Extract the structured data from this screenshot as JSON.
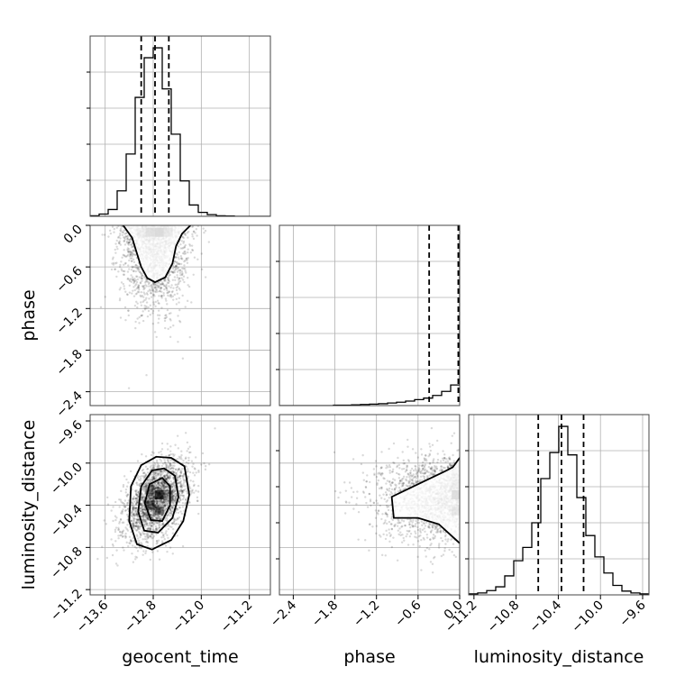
{
  "chart_data": {
    "type": "corner",
    "parameters": [
      "geocent_time",
      "phase",
      "luminosity_distance"
    ],
    "labels": {
      "geocent_time": "geocent_time",
      "phase": "phase",
      "luminosity_distance": "luminosity_distance"
    },
    "ranges": {
      "geocent_time": [
        -13.85,
        -10.85
      ],
      "phase": [
        -2.6,
        0.0
      ],
      "luminosity_distance": [
        -11.25,
        -9.54
      ]
    },
    "ticks": {
      "geocent_time": {
        "values": [
          -13.6,
          -12.8,
          -12.0,
          -11.2
        ],
        "labels": [
          "−13.6",
          "−12.8",
          "−12.0",
          "−11.2"
        ]
      },
      "phase": {
        "values": [
          -2.4,
          -1.8,
          -1.2,
          -0.6,
          0.0
        ],
        "labels": [
          "−2.4",
          "−1.8",
          "−1.2",
          "−0.6",
          "0.0"
        ]
      },
      "luminosity_distance": {
        "values": [
          -11.2,
          -10.8,
          -10.4,
          -10.0,
          -9.6
        ],
        "labels": [
          "−11.2",
          "−10.8",
          "−10.4",
          "−10.0",
          "−9.6"
        ]
      }
    },
    "grid": true,
    "marginals": {
      "geocent_time": {
        "bins": [
          -13.85,
          -13.7,
          -13.55,
          -13.4,
          -13.25,
          -13.1,
          -12.95,
          -12.8,
          -12.65,
          -12.5,
          -12.35,
          -12.2,
          -12.05,
          -11.9,
          -11.75,
          -11.6,
          -11.45,
          -11.3,
          -11.15,
          -11.0,
          -10.85
        ],
        "counts": [
          2,
          8,
          24,
          90,
          220,
          420,
          560,
          595,
          450,
          290,
          125,
          40,
          14,
          6,
          2,
          1,
          0,
          0,
          0,
          0
        ],
        "quantiles": [
          -13.0,
          -12.77,
          -12.54
        ]
      },
      "phase": {
        "bins": [
          -2.6,
          -2.47,
          -2.34,
          -2.21,
          -2.08,
          -1.95,
          -1.82,
          -1.69,
          -1.56,
          -1.43,
          -1.3,
          -1.17,
          -1.04,
          -0.91,
          -0.78,
          -0.65,
          -0.52,
          -0.39,
          -0.26,
          -0.13,
          0.0
        ],
        "counts": [
          0,
          0,
          0,
          0,
          0,
          0,
          1,
          1,
          2,
          3,
          4,
          5,
          7,
          9,
          12,
          16,
          20,
          27,
          38,
          55,
          450
        ],
        "quantiles": [
          -0.44,
          -0.02,
          0.0
        ]
      },
      "luminosity_distance": {
        "bins": [
          -11.25,
          -11.1645,
          -11.079,
          -10.9935,
          -10.908,
          -10.8225,
          -10.737,
          -10.6515,
          -10.566,
          -10.4805,
          -10.395,
          -10.3095,
          -10.224,
          -10.1385,
          -10.053,
          -9.9675,
          -9.882,
          -9.7965,
          -9.711,
          -9.6255,
          -9.54
        ],
        "counts": [
          2,
          4,
          9,
          17,
          40,
          72,
          100,
          152,
          245,
          300,
          355,
          295,
          205,
          125,
          80,
          46,
          20,
          8,
          4,
          2
        ],
        "quantiles": [
          -10.59,
          -10.37,
          -10.16
        ]
      }
    },
    "pairs": [
      {
        "x": "geocent_time",
        "y": "phase",
        "centroid": [
          -12.77,
          -0.05
        ],
        "spread": [
          0.28,
          0.35
        ],
        "correlation": 0,
        "points": 1800,
        "contours": [
          [
            [
              -13.3,
              0.0
            ],
            [
              -13.15,
              -0.18
            ],
            [
              -13.08,
              -0.38
            ],
            [
              -13.0,
              -0.6
            ],
            [
              -12.9,
              -0.76
            ],
            [
              -12.77,
              -0.82
            ],
            [
              -12.6,
              -0.75
            ],
            [
              -12.48,
              -0.55
            ],
            [
              -12.42,
              -0.3
            ],
            [
              -12.32,
              -0.12
            ],
            [
              -12.18,
              0.0
            ]
          ]
        ]
      },
      {
        "x": "geocent_time",
        "y": "luminosity_distance",
        "centroid": [
          -12.75,
          -10.35
        ],
        "spread": [
          0.27,
          0.19
        ],
        "correlation": 0.45,
        "points": 2200,
        "contours": [
          [
            [
              -12.5,
              -9.95
            ],
            [
              -12.28,
              -10.03
            ],
            [
              -12.2,
              -10.3
            ],
            [
              -12.3,
              -10.55
            ],
            [
              -12.5,
              -10.73
            ],
            [
              -12.82,
              -10.82
            ],
            [
              -13.07,
              -10.77
            ],
            [
              -13.2,
              -10.55
            ],
            [
              -13.17,
              -10.22
            ],
            [
              -13.0,
              -10.02
            ],
            [
              -12.75,
              -9.94
            ]
          ],
          [
            [
              -12.62,
              -10.05
            ],
            [
              -12.44,
              -10.12
            ],
            [
              -12.38,
              -10.32
            ],
            [
              -12.48,
              -10.52
            ],
            [
              -12.72,
              -10.66
            ],
            [
              -12.95,
              -10.64
            ],
            [
              -13.05,
              -10.46
            ],
            [
              -13.0,
              -10.22
            ],
            [
              -12.82,
              -10.07
            ]
          ],
          [
            [
              -12.65,
              -10.14
            ],
            [
              -12.52,
              -10.22
            ],
            [
              -12.52,
              -10.4
            ],
            [
              -12.65,
              -10.55
            ],
            [
              -12.84,
              -10.54
            ],
            [
              -12.94,
              -10.38
            ],
            [
              -12.86,
              -10.2
            ]
          ]
        ]
      },
      {
        "x": "phase",
        "y": "luminosity_distance",
        "centroid": [
          -0.05,
          -10.33
        ],
        "spread": [
          0.35,
          0.2
        ],
        "correlation": 0,
        "points": 1800,
        "contours": [
          [
            [
              0.0,
              -9.95
            ],
            [
              -0.1,
              -10.04
            ],
            [
              -0.22,
              -10.08
            ],
            [
              -0.6,
              -10.2
            ],
            [
              -0.98,
              -10.32
            ],
            [
              -0.95,
              -10.52
            ],
            [
              -0.6,
              -10.52
            ],
            [
              -0.3,
              -10.58
            ],
            [
              -0.1,
              -10.7
            ],
            [
              0.0,
              -10.76
            ]
          ]
        ]
      }
    ],
    "hist2d_cells": [
      {
        "pair": 0,
        "cells": [
          [
            -13.0,
            -0.1,
            0.3
          ],
          [
            -12.85,
            -0.1,
            0.7
          ],
          [
            -12.7,
            -0.1,
            0.9
          ],
          [
            -12.55,
            -0.1,
            0.45
          ]
        ]
      },
      {
        "pair": 1,
        "cells": [
          [
            -12.85,
            -10.4,
            0.55
          ],
          [
            -12.7,
            -10.3,
            0.75
          ],
          [
            -12.7,
            -10.45,
            0.5
          ],
          [
            -12.85,
            -10.25,
            0.35
          ],
          [
            -12.55,
            -10.3,
            0.3
          ]
        ]
      },
      {
        "pair": 2,
        "cells": [
          [
            -0.05,
            -10.2,
            0.35
          ],
          [
            -0.05,
            -10.3,
            0.8
          ],
          [
            -0.05,
            -10.45,
            0.5
          ],
          [
            -0.05,
            -10.1,
            0.2
          ]
        ]
      }
    ]
  }
}
